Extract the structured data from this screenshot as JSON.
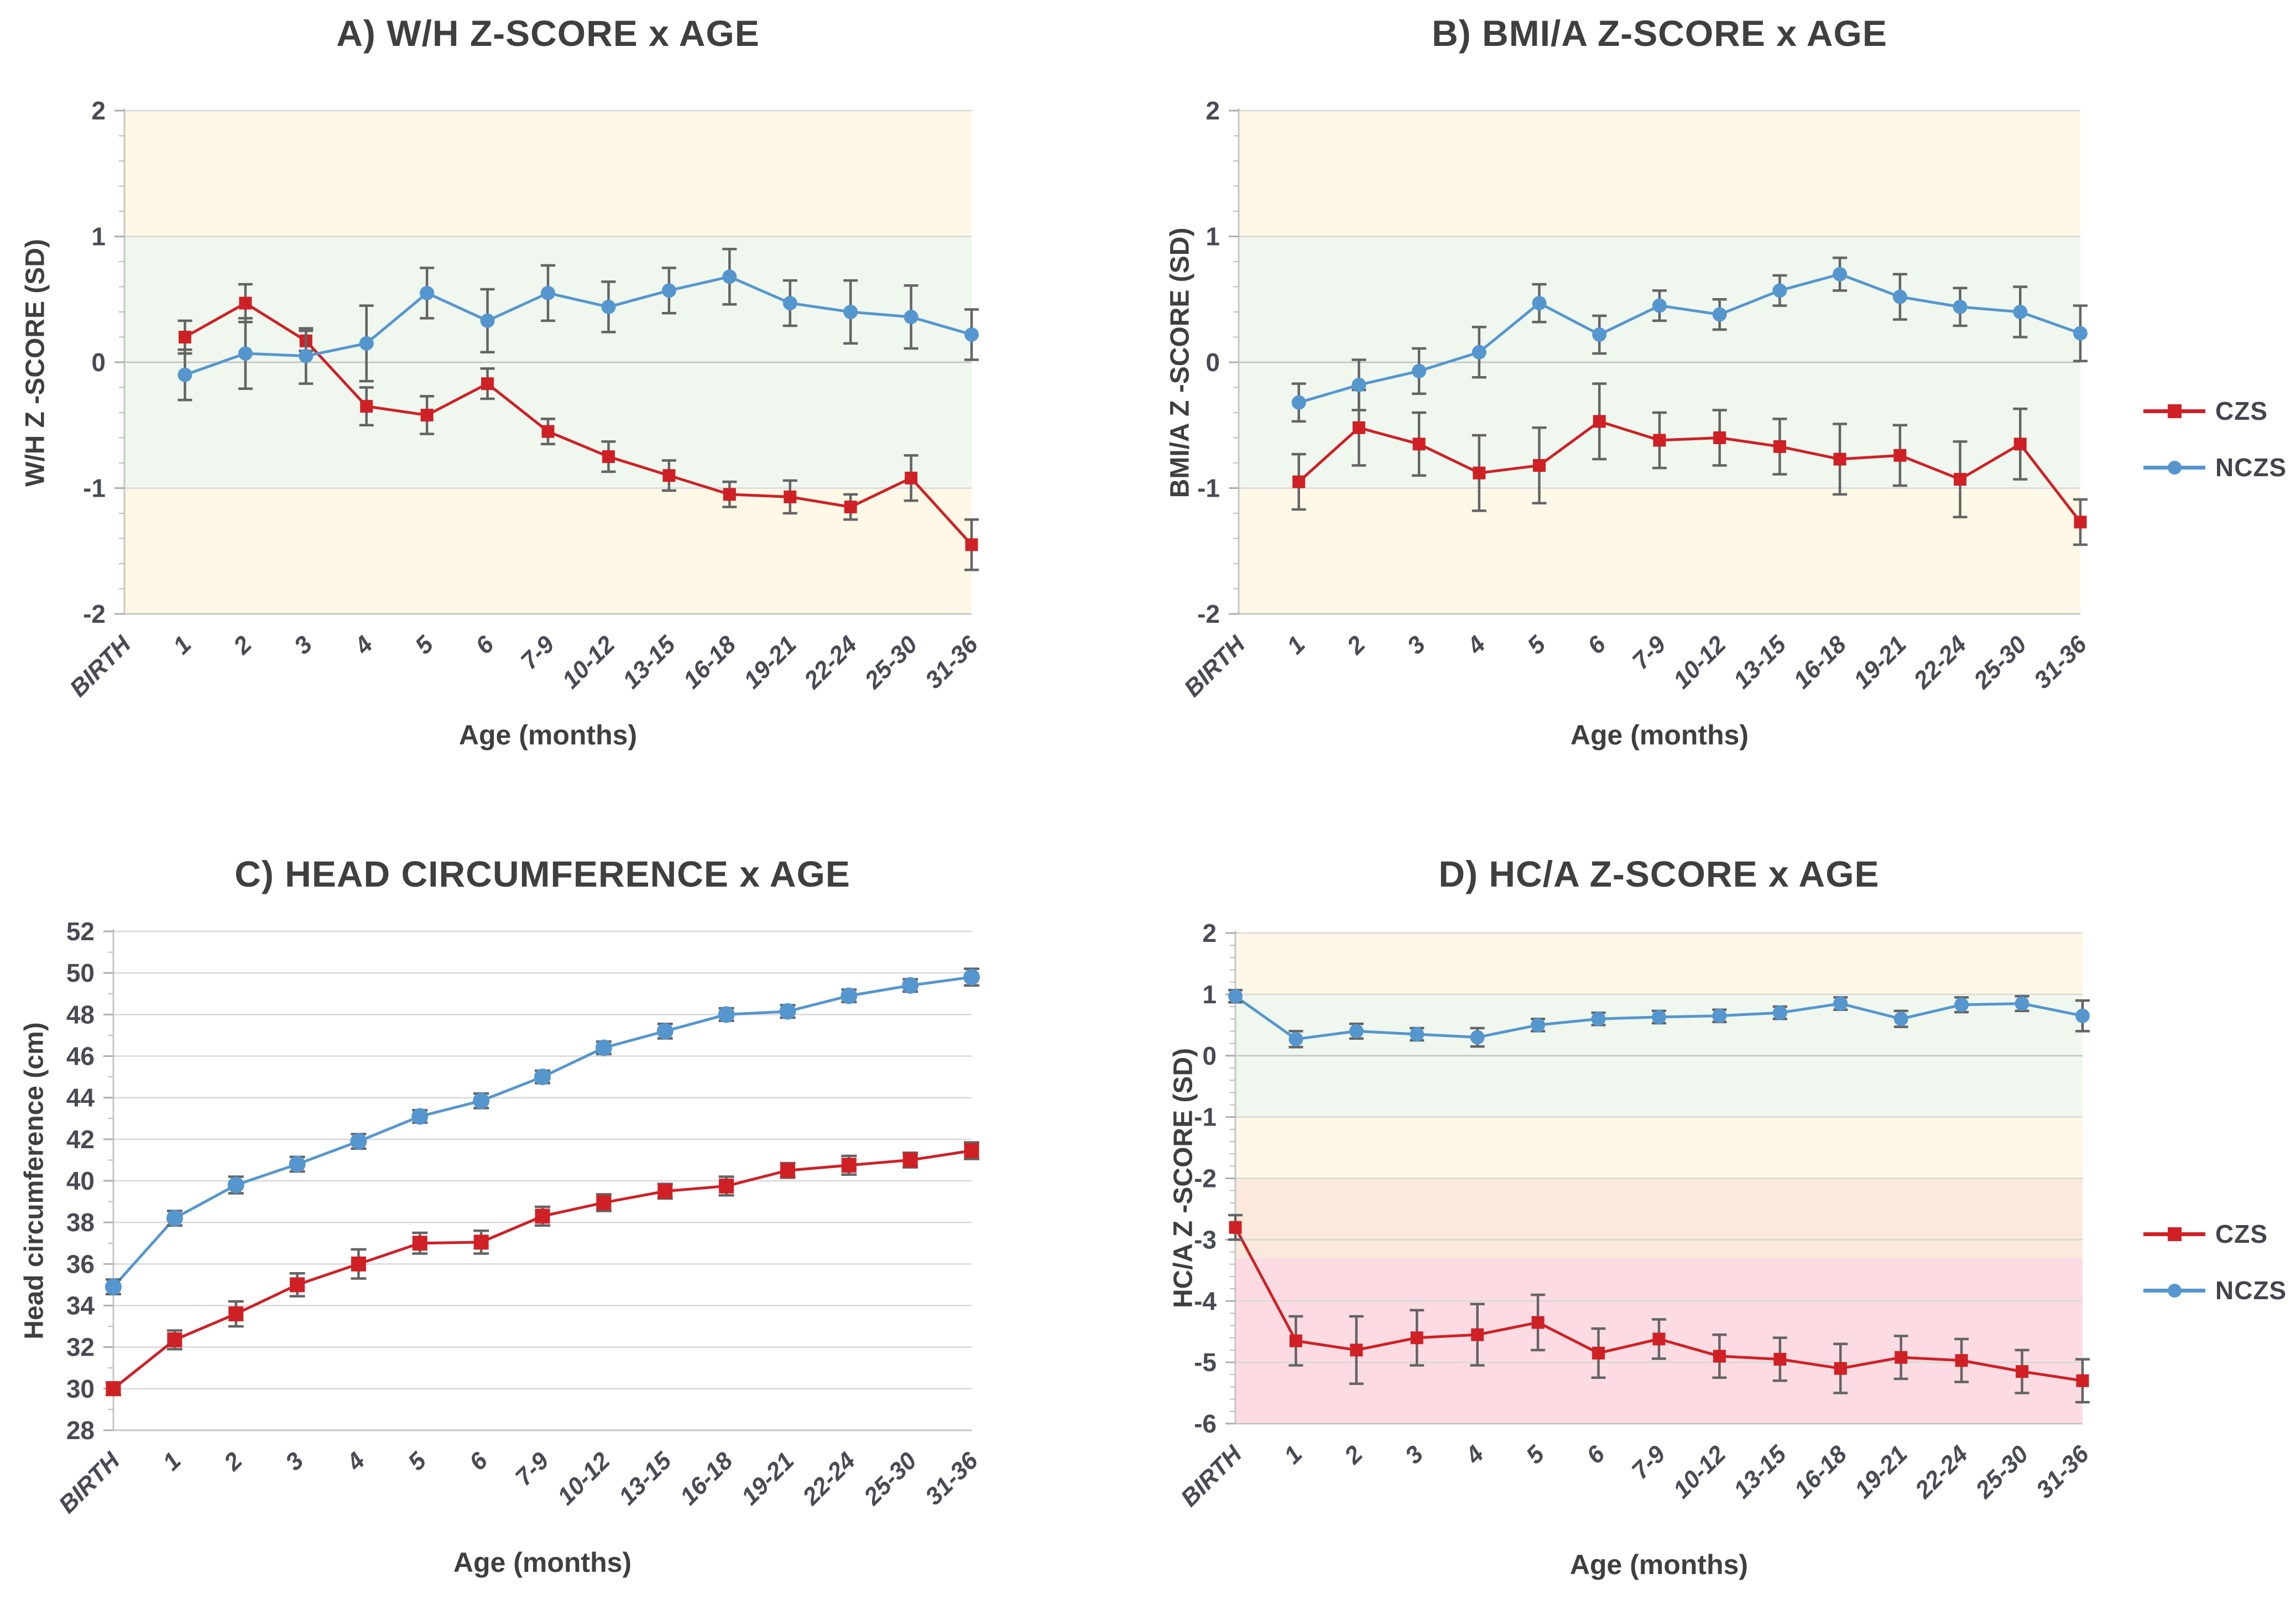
{
  "figure": {
    "x_axis_title": "Age (months)",
    "categories": [
      "BIRTH",
      "1",
      "2",
      "3",
      "4",
      "5",
      "6",
      "7-9",
      "10-12",
      "13-15",
      "16-18",
      "19-21",
      "22-24",
      "25-30",
      "31-36"
    ]
  },
  "legend": {
    "items": [
      {
        "label": "CZS",
        "marker": "square",
        "color": "#CF2026"
      },
      {
        "label": "NCZS",
        "marker": "circle",
        "color": "#5596CE"
      }
    ]
  },
  "colors": {
    "czs_red": "#CF2026",
    "nczs_blue": "#5596CE",
    "error_bar": "#646464",
    "gridline": "#D8D8D8",
    "zero_line": "#C2C2C2",
    "axis_line": "#C6C6C6",
    "band_yellow": "#FFF8E6",
    "band_green": "#F0F7EE",
    "band_orange": "#FBEADC",
    "band_pink": "#FCDCE2",
    "title_text": "#3F3F3F",
    "tick_text": "#4A4A55"
  },
  "chart_data": [
    {
      "id": "A",
      "type": "line",
      "title": "A) W/H Z-SCORE x AGE",
      "xlabel": "Age (months)",
      "ylabel": "W/H Z -SCORE (SD)",
      "ylim": [
        -2,
        2
      ],
      "yticks": [
        2,
        1,
        0,
        -1,
        -2
      ],
      "grid": true,
      "legend_position": "none",
      "categories": [
        "BIRTH",
        "1",
        "2",
        "3",
        "4",
        "5",
        "6",
        "7-9",
        "10-12",
        "13-15",
        "16-18",
        "19-21",
        "22-24",
        "25-30",
        "31-36"
      ],
      "bands": [
        {
          "from": 1,
          "to": 2,
          "color": "#FFF8E6"
        },
        {
          "from": -1,
          "to": 1,
          "color": "#F0F7EE"
        },
        {
          "from": -2,
          "to": -1,
          "color": "#FFF8E6"
        }
      ],
      "series": [
        {
          "name": "CZS",
          "color": "#CF2026",
          "marker": "square",
          "values": [
            null,
            0.2,
            0.47,
            0.17,
            -0.35,
            -0.42,
            -0.17,
            -0.55,
            -0.75,
            -0.9,
            -1.05,
            -1.07,
            -1.15,
            -0.92,
            -1.45
          ],
          "errors": [
            null,
            0.13,
            0.15,
            0.08,
            0.15,
            0.15,
            0.12,
            0.1,
            0.12,
            0.12,
            0.1,
            0.13,
            0.1,
            0.18,
            0.2
          ]
        },
        {
          "name": "NCZS",
          "color": "#5596CE",
          "marker": "circle",
          "values": [
            null,
            -0.1,
            0.07,
            0.05,
            0.15,
            0.55,
            0.33,
            0.55,
            0.44,
            0.57,
            0.68,
            0.47,
            0.4,
            0.36,
            0.22
          ],
          "errors": [
            null,
            0.2,
            0.28,
            0.22,
            0.3,
            0.2,
            0.25,
            0.22,
            0.2,
            0.18,
            0.22,
            0.18,
            0.25,
            0.25,
            0.2
          ]
        }
      ]
    },
    {
      "id": "B",
      "type": "line",
      "title": "B) BMI/A Z-SCORE x AGE",
      "xlabel": "Age (months)",
      "ylabel": "BMI/A Z -SCORE (SD)",
      "ylim": [
        -2,
        2
      ],
      "yticks": [
        2,
        1,
        0,
        -1,
        -2
      ],
      "grid": true,
      "legend_position": "right",
      "categories": [
        "BIRTH",
        "1",
        "2",
        "3",
        "4",
        "5",
        "6",
        "7-9",
        "10-12",
        "13-15",
        "16-18",
        "19-21",
        "22-24",
        "25-30",
        "31-36"
      ],
      "bands": [
        {
          "from": 1,
          "to": 2,
          "color": "#FFF8E6"
        },
        {
          "from": -1,
          "to": 1,
          "color": "#F0F7EE"
        },
        {
          "from": -2,
          "to": -1,
          "color": "#FFF8E6"
        }
      ],
      "series": [
        {
          "name": "CZS",
          "color": "#CF2026",
          "marker": "square",
          "values": [
            null,
            -0.95,
            -0.52,
            -0.65,
            -0.88,
            -0.82,
            -0.47,
            -0.62,
            -0.6,
            -0.67,
            -0.77,
            -0.74,
            -0.93,
            -0.65,
            -1.27
          ],
          "errors": [
            null,
            0.22,
            0.3,
            0.25,
            0.3,
            0.3,
            0.3,
            0.22,
            0.22,
            0.22,
            0.28,
            0.24,
            0.3,
            0.28,
            0.18
          ]
        },
        {
          "name": "NCZS",
          "color": "#5596CE",
          "marker": "circle",
          "values": [
            null,
            -0.32,
            -0.18,
            -0.07,
            0.08,
            0.47,
            0.22,
            0.45,
            0.38,
            0.57,
            0.7,
            0.52,
            0.44,
            0.4,
            0.23
          ],
          "errors": [
            null,
            0.15,
            0.2,
            0.18,
            0.2,
            0.15,
            0.15,
            0.12,
            0.12,
            0.12,
            0.13,
            0.18,
            0.15,
            0.2,
            0.22
          ]
        }
      ]
    },
    {
      "id": "C",
      "type": "line",
      "title": "C) HEAD CIRCUMFERENCE x AGE",
      "xlabel": "Age (months)",
      "ylabel": "Head circumference (cm)",
      "ylim": [
        28,
        52
      ],
      "yticks": [
        52,
        50,
        48,
        46,
        44,
        42,
        40,
        38,
        36,
        34,
        32,
        30,
        28
      ],
      "grid": true,
      "legend_position": "none",
      "categories": [
        "BIRTH",
        "1",
        "2",
        "3",
        "4",
        "5",
        "6",
        "7-9",
        "10-12",
        "13-15",
        "16-18",
        "19-21",
        "22-24",
        "25-30",
        "31-36"
      ],
      "bands": [],
      "series": [
        {
          "name": "CZS",
          "color": "#CF2026",
          "marker": "square",
          "values": [
            30,
            32.35,
            33.6,
            35,
            36,
            37,
            37.05,
            38.3,
            38.95,
            39.5,
            39.75,
            40.5,
            40.75,
            41,
            41.45
          ],
          "errors": [
            0.3,
            0.45,
            0.6,
            0.55,
            0.7,
            0.5,
            0.55,
            0.45,
            0.4,
            0.35,
            0.45,
            0.35,
            0.45,
            0.35,
            0.4
          ]
        },
        {
          "name": "NCZS",
          "color": "#5596CE",
          "marker": "circle",
          "values": [
            34.9,
            38.2,
            39.8,
            40.8,
            41.9,
            43.1,
            43.85,
            45,
            46.4,
            47.2,
            48,
            48.15,
            48.9,
            49.4,
            49.8
          ],
          "errors": [
            0.35,
            0.35,
            0.4,
            0.35,
            0.35,
            0.3,
            0.35,
            0.3,
            0.3,
            0.35,
            0.3,
            0.3,
            0.3,
            0.3,
            0.4
          ]
        }
      ]
    },
    {
      "id": "D",
      "type": "line",
      "title": "D) HC/A Z-SCORE x AGE",
      "xlabel": "Age (months)",
      "ylabel": "HC/A Z -SCORE (SD)",
      "ylim": [
        -6,
        2
      ],
      "yticks": [
        2,
        1,
        0,
        -1,
        -2,
        -3,
        -4,
        -5,
        -6
      ],
      "grid": true,
      "legend_position": "right",
      "categories": [
        "BIRTH",
        "1",
        "2",
        "3",
        "4",
        "5",
        "6",
        "7-9",
        "10-12",
        "13-15",
        "16-18",
        "19-21",
        "22-24",
        "25-30",
        "31-36"
      ],
      "bands": [
        {
          "from": 1,
          "to": 2,
          "color": "#FFF8E6"
        },
        {
          "from": -1,
          "to": 1,
          "color": "#F0F7EE"
        },
        {
          "from": -2,
          "to": -1,
          "color": "#FFF8E6"
        },
        {
          "from": -3.3,
          "to": -2,
          "color": "#FBEADC"
        },
        {
          "from": -6,
          "to": -3.3,
          "color": "#FCDCE2"
        }
      ],
      "series": [
        {
          "name": "CZS",
          "color": "#CF2026",
          "marker": "square",
          "values": [
            -2.8,
            -4.65,
            -4.8,
            -4.6,
            -4.55,
            -4.35,
            -4.85,
            -4.62,
            -4.9,
            -4.95,
            -5.1,
            -4.92,
            -4.97,
            -5.15,
            -5.3
          ],
          "errors": [
            0.2,
            0.4,
            0.55,
            0.45,
            0.5,
            0.45,
            0.4,
            0.32,
            0.35,
            0.35,
            0.4,
            0.35,
            0.35,
            0.35,
            0.35
          ]
        },
        {
          "name": "NCZS",
          "color": "#5596CE",
          "marker": "circle",
          "values": [
            0.97,
            0.27,
            0.4,
            0.35,
            0.3,
            0.5,
            0.6,
            0.63,
            0.65,
            0.7,
            0.85,
            0.6,
            0.83,
            0.85,
            0.65
          ],
          "errors": [
            0.1,
            0.13,
            0.12,
            0.1,
            0.15,
            0.1,
            0.1,
            0.1,
            0.1,
            0.1,
            0.1,
            0.13,
            0.12,
            0.12,
            0.25
          ]
        }
      ]
    }
  ]
}
